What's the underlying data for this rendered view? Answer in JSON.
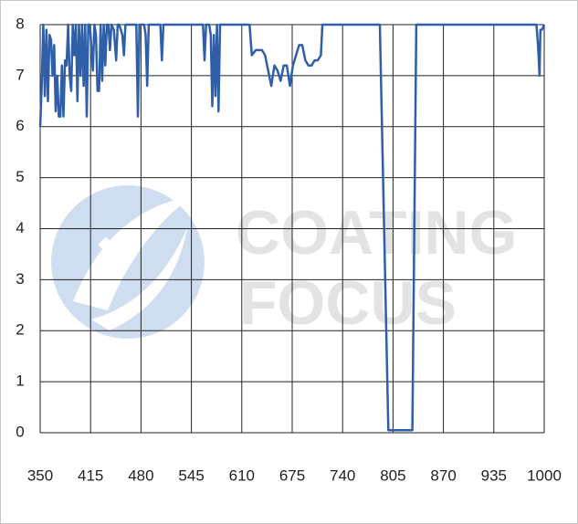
{
  "chart_data": {
    "type": "line",
    "watermark": [
      "COATING",
      "FOCUS"
    ],
    "x": [
      350,
      352,
      354,
      356,
      358,
      360,
      362,
      364,
      366,
      368,
      370,
      372,
      374,
      376,
      378,
      380,
      382,
      384,
      386,
      388,
      390,
      392,
      394,
      396,
      398,
      400,
      402,
      404,
      406,
      408,
      410,
      412,
      414,
      418,
      420,
      422,
      424,
      426,
      428,
      430,
      432,
      434,
      436,
      438,
      440,
      442,
      445,
      448,
      450,
      452,
      456,
      458,
      460,
      470,
      474,
      476,
      478,
      484,
      486,
      488,
      490,
      505,
      507,
      509,
      560,
      562,
      564,
      568,
      570,
      572,
      574,
      576,
      578,
      580,
      582,
      620,
      623,
      628,
      632,
      636,
      640,
      644,
      648,
      652,
      656,
      660,
      664,
      668,
      672,
      676,
      680,
      684,
      688,
      692,
      696,
      700,
      704,
      708,
      712,
      714,
      788,
      799,
      830,
      835,
      990,
      992,
      994,
      995,
      997,
      1000
    ],
    "series": [
      {
        "color": "#2e5fa8",
        "values": [
          6.0,
          6.8,
          8,
          6.6,
          7.9,
          6.5,
          7.8,
          7.7,
          7.0,
          7.6,
          6.3,
          7.0,
          6.2,
          6.2,
          7.2,
          6.2,
          7.3,
          7.2,
          8,
          7.0,
          6.7,
          8,
          7.4,
          8,
          6.5,
          8,
          7.0,
          8,
          6.8,
          8,
          6.2,
          8,
          8,
          7.1,
          8,
          7.8,
          6.7,
          6.7,
          8,
          6.9,
          8,
          7.2,
          8,
          8,
          7.5,
          8,
          7.9,
          7.3,
          8,
          8,
          7.8,
          7.4,
          8,
          8,
          8,
          6.2,
          8,
          8,
          7.8,
          6.8,
          8,
          8,
          7.3,
          8,
          8,
          7.3,
          8,
          8,
          7.8,
          6.4,
          7.8,
          6.6,
          8,
          6.3,
          8,
          8,
          7.4,
          7.5,
          7.5,
          7.5,
          7.4,
          7.1,
          6.8,
          7.2,
          7.1,
          6.9,
          7.2,
          7.2,
          6.8,
          7.2,
          7.4,
          7.6,
          7.6,
          7.3,
          7.2,
          7.2,
          7.3,
          7.3,
          7.4,
          8,
          8,
          0.05,
          0.05,
          8,
          8,
          7.6,
          7,
          7.9,
          7.9,
          8
        ]
      }
    ],
    "xlim": [
      350,
      1000
    ],
    "xticks": [
      350,
      415,
      480,
      545,
      610,
      675,
      740,
      805,
      870,
      935,
      1000
    ],
    "ylim": [
      0,
      8
    ],
    "yticks": [
      0,
      1,
      2,
      3,
      4,
      5,
      6,
      7,
      8
    ],
    "grid": true
  }
}
